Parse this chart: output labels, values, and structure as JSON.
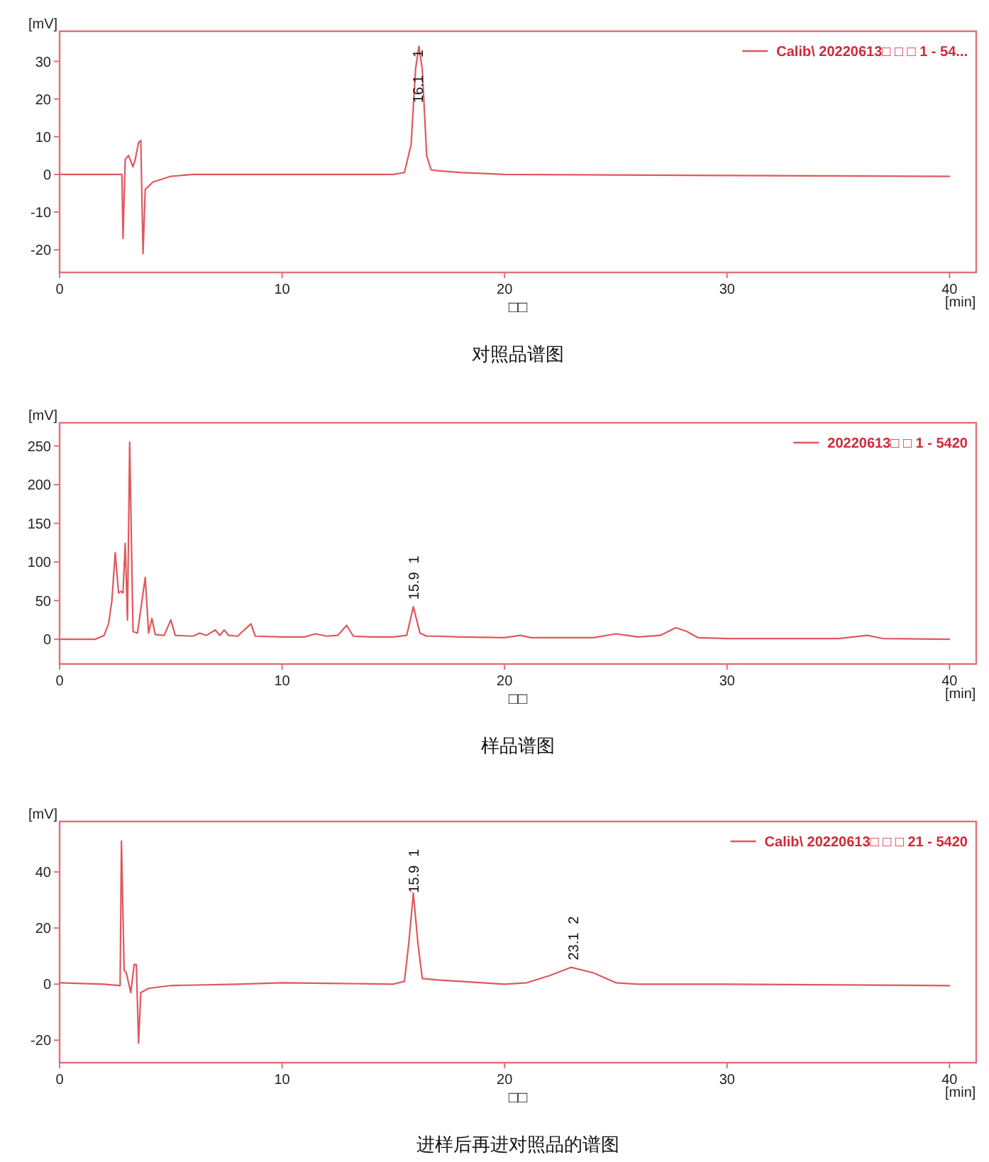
{
  "chart_data": [
    {
      "type": "line",
      "title": "对照品谱图",
      "xlabel": "□□",
      "ylabel": "[mV]",
      "xlim": [
        0,
        41.2
      ],
      "ylim": [
        -26,
        38
      ],
      "xticks": [
        0,
        10,
        20,
        30,
        40
      ],
      "yticks": [
        -20,
        -10,
        0,
        10,
        20,
        30
      ],
      "legend": "top right",
      "series": [
        {
          "name": "Calib\\ 20220613□ □ □ 1 - 54...",
          "color": "#e0585e",
          "x": [
            0,
            2.8,
            2.85,
            2.95,
            3.1,
            3.3,
            3.4,
            3.55,
            3.65,
            3.75,
            3.85,
            4.2,
            5,
            6,
            15,
            15.5,
            15.8,
            16.0,
            16.15,
            16.3,
            16.5,
            16.7,
            17,
            18,
            20,
            30,
            40
          ],
          "values": [
            0,
            0,
            -17,
            4,
            5,
            2,
            4,
            8.5,
            9,
            -21,
            -4,
            -2,
            -0.5,
            0,
            0,
            0.5,
            8,
            28,
            34,
            28,
            5,
            1.2,
            1,
            0.5,
            0,
            -0.3,
            -0.5
          ]
        }
      ],
      "annotations": [
        {
          "text": "16.1",
          "x": 16.1,
          "y": 19
        },
        {
          "text": "1",
          "x": 16.1,
          "y": 31
        },
        "[min]"
      ]
    },
    {
      "type": "line",
      "title": "样品谱图",
      "xlabel": "□□",
      "ylabel": "[mV]",
      "xlim": [
        0,
        41.2
      ],
      "ylim": [
        -32,
        280
      ],
      "xticks": [
        0,
        10,
        20,
        30,
        40
      ],
      "yticks": [
        0,
        50,
        100,
        150,
        200,
        250
      ],
      "legend": "top right",
      "series": [
        {
          "name": "20220613□ □ 1 - 5420",
          "color": "#e0585e",
          "x": [
            0,
            1.5,
            1.6,
            2.0,
            2.2,
            2.35,
            2.5,
            2.65,
            2.75,
            2.85,
            2.95,
            3.05,
            3.15,
            3.3,
            3.5,
            3.85,
            4.0,
            4.15,
            4.3,
            4.7,
            5.0,
            5.2,
            6,
            6.3,
            6.6,
            7,
            7.2,
            7.4,
            7.6,
            8,
            8.6,
            8.8,
            10,
            11,
            11.5,
            12,
            12.5,
            12.9,
            13.2,
            14,
            15,
            15.6,
            15.9,
            16.2,
            16.5,
            17,
            18,
            20,
            20.7,
            21.2,
            24,
            25,
            25.5,
            26,
            27,
            27.7,
            28.2,
            28.7,
            30,
            35,
            36.3,
            37,
            40
          ],
          "values": [
            0,
            0,
            0,
            5,
            20,
            50,
            112,
            60,
            62,
            60,
            124,
            25,
            255,
            10,
            8,
            80,
            8,
            27,
            6,
            5,
            25,
            5,
            4,
            8,
            5,
            12,
            5,
            12,
            5,
            4,
            20,
            4,
            3,
            3,
            7,
            4,
            5,
            18,
            4,
            3,
            3,
            5,
            42,
            8,
            4,
            4,
            3,
            2,
            5,
            2,
            2,
            7,
            5,
            3,
            5,
            15,
            10,
            2,
            1,
            1,
            5,
            1,
            0
          ]
        }
      ],
      "annotations": [
        {
          "text": "15.9",
          "x": 15.9,
          "y": 42
        },
        "1",
        "[min]"
      ]
    },
    {
      "type": "line",
      "title": "进样后再进对照品的谱图",
      "xlabel": "□□",
      "ylabel": "[mV]",
      "xlim": [
        0,
        41.2
      ],
      "ylim": [
        -28,
        58
      ],
      "xticks": [
        0,
        10,
        20,
        30,
        40
      ],
      "yticks": [
        -20,
        0,
        20,
        40
      ],
      "legend": "top right",
      "series": [
        {
          "name": "Calib\\ 20220613□ □ □ 21 - 5420",
          "color": "#e0585e",
          "x": [
            0,
            2,
            2.72,
            2.78,
            2.9,
            3.0,
            3.2,
            3.35,
            3.45,
            3.55,
            3.65,
            4,
            5,
            8,
            10,
            12,
            15,
            15.5,
            15.7,
            15.9,
            16.1,
            16.3,
            17,
            18,
            20,
            21,
            22,
            23,
            24,
            25,
            26,
            30,
            40
          ],
          "values": [
            0.5,
            0,
            -0.5,
            51,
            5,
            4,
            -3,
            7,
            7,
            -21,
            -3,
            -1.5,
            -0.5,
            0,
            0.5,
            0.3,
            0,
            1,
            15,
            32.5,
            15,
            2,
            1.5,
            1,
            0,
            0.5,
            3,
            6,
            4,
            0.5,
            0,
            0,
            -0.5
          ]
        }
      ],
      "annotations": [
        {
          "text": "15.9",
          "x": 15.9,
          "y": 32.5
        },
        "1",
        {
          "text": "23.1",
          "x": 23.1,
          "y": 6
        },
        "2",
        "[min]"
      ]
    }
  ]
}
